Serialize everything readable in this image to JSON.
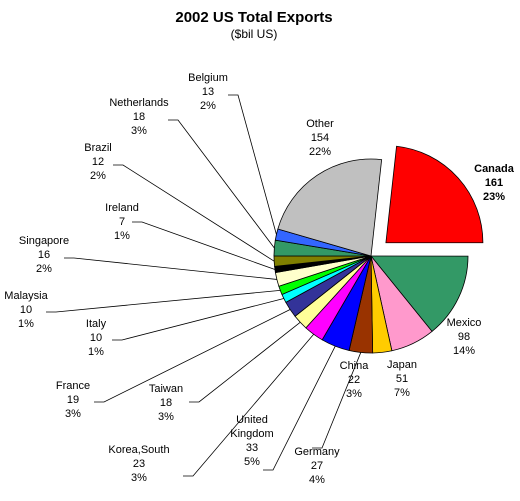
{
  "chart_data": {
    "type": "pie",
    "title": "2002 US Total Exports",
    "subtitle": "($bil US)",
    "slices": [
      {
        "name": "Canada",
        "value": "161",
        "pct": "23%",
        "color": "#FF0000",
        "exploded": true,
        "bold": true
      },
      {
        "name": "Mexico",
        "value": "98",
        "pct": "14%",
        "color": "#339966"
      },
      {
        "name": "Japan",
        "value": "51",
        "pct": "7%",
        "color": "#FF99CC"
      },
      {
        "name": "China",
        "value": "22",
        "pct": "3%",
        "color": "#FFCC00"
      },
      {
        "name": "Germany",
        "value": "27",
        "pct": "4%",
        "color": "#993300"
      },
      {
        "name": "United Kingdom",
        "value": "33",
        "pct": "5%",
        "color": "#0000FF"
      },
      {
        "name": "Korea,South",
        "value": "23",
        "pct": "3%",
        "color": "#FF00FF"
      },
      {
        "name": "Taiwan",
        "value": "18",
        "pct": "3%",
        "color": "#FFFF99"
      },
      {
        "name": "France",
        "value": "19",
        "pct": "3%",
        "color": "#333399"
      },
      {
        "name": "Italy",
        "value": "10",
        "pct": "1%",
        "color": "#00FFFF"
      },
      {
        "name": "Malaysia",
        "value": "10",
        "pct": "1%",
        "color": "#00FF00"
      },
      {
        "name": "Singapore",
        "value": "16",
        "pct": "2%",
        "color": "#FFFFCC"
      },
      {
        "name": "Ireland",
        "value": "7",
        "pct": "1%",
        "color": "#000000"
      },
      {
        "name": "Brazil",
        "value": "12",
        "pct": "2%",
        "color": "#808000"
      },
      {
        "name": "Netherlands",
        "value": "18",
        "pct": "3%",
        "color": "#339966"
      },
      {
        "name": "Belgium",
        "value": "13",
        "pct": "2%",
        "color": "#3366FF"
      },
      {
        "name": "Other",
        "value": "154",
        "pct": "22%",
        "color": "#C0C0C0"
      }
    ]
  }
}
